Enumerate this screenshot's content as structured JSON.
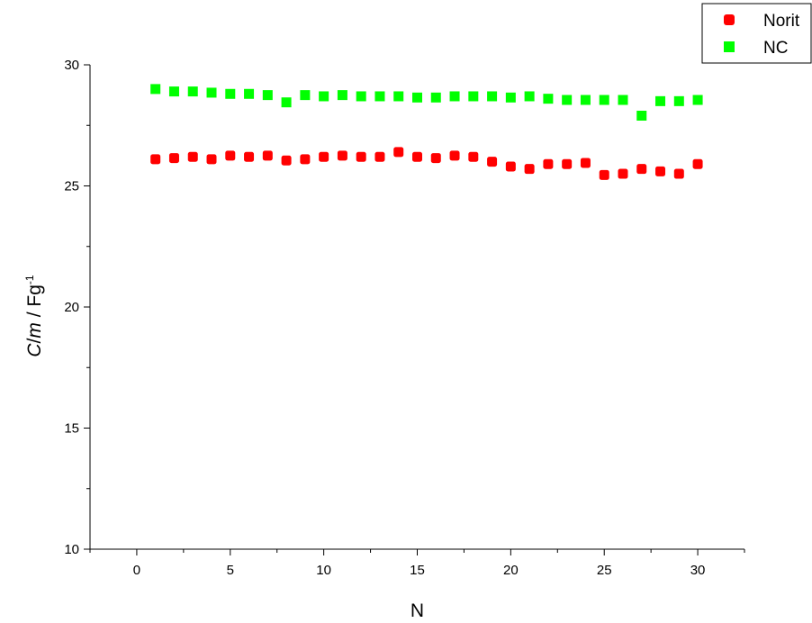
{
  "chart_data": {
    "type": "scatter",
    "title": "",
    "xlabel": "N",
    "ylabel_parts": {
      "c": "C",
      "slash1": "/",
      "m": "m",
      "slash2": " / ",
      "unit": "Fg",
      "exponent": "-1"
    },
    "xlim": [
      -2.5,
      32.5
    ],
    "ylim": [
      10,
      30
    ],
    "xticks": [
      0,
      5,
      10,
      15,
      20,
      25,
      30
    ],
    "xtick_labels": [
      "0",
      "5",
      "10",
      "15",
      "20",
      "25",
      "30"
    ],
    "yticks": [
      10,
      15,
      20,
      25,
      30
    ],
    "ytick_labels": [
      "10",
      "15",
      "20",
      "25",
      "30"
    ],
    "grid": false,
    "legend_position": "top-right",
    "x": [
      1,
      2,
      3,
      4,
      5,
      6,
      7,
      8,
      9,
      10,
      11,
      12,
      13,
      14,
      15,
      16,
      17,
      18,
      19,
      20,
      21,
      22,
      23,
      24,
      25,
      26,
      27,
      28,
      29,
      30
    ],
    "series": [
      {
        "name": "Norit",
        "color": "#ff0000",
        "marker": "rounded-square",
        "values": [
          26.1,
          26.15,
          26.2,
          26.1,
          26.25,
          26.2,
          26.25,
          26.05,
          26.1,
          26.2,
          26.25,
          26.2,
          26.2,
          26.4,
          26.2,
          26.15,
          26.25,
          26.2,
          26.0,
          25.8,
          25.7,
          25.9,
          25.9,
          25.95,
          25.45,
          25.5,
          25.7,
          25.6,
          25.5,
          25.9
        ]
      },
      {
        "name": "NC",
        "color": "#00ff00",
        "marker": "square",
        "values": [
          29.0,
          28.9,
          28.9,
          28.85,
          28.8,
          28.8,
          28.75,
          28.45,
          28.75,
          28.7,
          28.75,
          28.7,
          28.7,
          28.7,
          28.65,
          28.65,
          28.7,
          28.7,
          28.7,
          28.65,
          28.7,
          28.6,
          28.55,
          28.55,
          28.55,
          28.55,
          27.9,
          28.5,
          28.5,
          28.55
        ]
      }
    ]
  }
}
